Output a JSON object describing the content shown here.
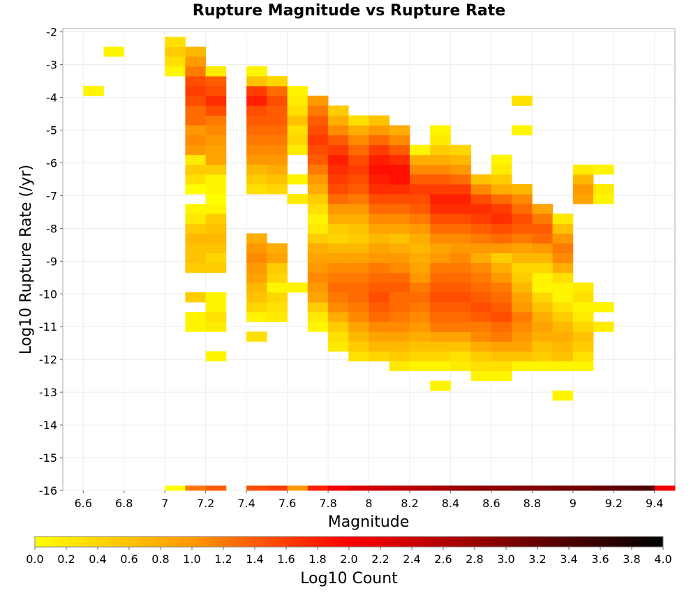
{
  "chart_data": {
    "type": "heatmap",
    "title": "Rupture Magnitude vs Rupture Rate",
    "xlabel": "Magnitude",
    "ylabel": "Log10 Rupture Rate (/yr)",
    "xlim": [
      6.5,
      9.5
    ],
    "ylim": [
      -16,
      -1.9
    ],
    "xticks": [
      "6.6",
      "6.8",
      "7",
      "7.2",
      "7.4",
      "7.6",
      "7.8",
      "8",
      "8.2",
      "8.4",
      "8.6",
      "8.8",
      "9",
      "9.2",
      "9.4"
    ],
    "yticks": [
      "-2",
      "-3",
      "-4",
      "-5",
      "-6",
      "-7",
      "-8",
      "-9",
      "-10",
      "-11",
      "-12",
      "-13",
      "-14",
      "-15",
      "-16"
    ],
    "x_bin_width": 0.1,
    "y_bin_width": 0.3,
    "grid": true,
    "colorbar": {
      "label": "Log10 Count",
      "min": 0.0,
      "max": 4.0,
      "ticks": [
        "0.0",
        "0.2",
        "0.4",
        "0.6",
        "0.8",
        "1.0",
        "1.2",
        "1.4",
        "1.6",
        "1.8",
        "2.0",
        "2.2",
        "2.4",
        "2.6",
        "2.8",
        "3.0",
        "3.2",
        "3.4",
        "3.6",
        "3.8",
        "4.0"
      ],
      "colors": [
        "#ffff00",
        "#ff9900",
        "#ff0000",
        "#800000",
        "#000000"
      ]
    },
    "columns": [
      {
        "x": 6.65,
        "y_start": -3.8,
        "values": [
          0.1
        ]
      },
      {
        "x": 6.75,
        "y_start": -2.6,
        "values": [
          0.1
        ]
      },
      {
        "x": 7.05,
        "y_start": -16.0,
        "values": [
          0.0
        ]
      },
      {
        "x": 7.05,
        "y_start": -3.2,
        "values": [
          0.1,
          0.3,
          0.5,
          0.3
        ]
      },
      {
        "x": 7.15,
        "y_start": -16.0,
        "values": [
          1.2
        ]
      },
      {
        "x": 7.15,
        "y_start": -11.0,
        "values": [
          0.1,
          0.1
        ]
      },
      {
        "x": 7.15,
        "y_start": -10.1,
        "values": [
          0.5
        ]
      },
      {
        "x": 7.15,
        "y_start": -9.2,
        "values": [
          0.5,
          0.6,
          0.6,
          0.7,
          0.5,
          0.2,
          0.1
        ]
      },
      {
        "x": 7.15,
        "y_start": -6.8,
        "values": [
          0.0,
          0.3,
          0.5,
          0.2,
          1.0,
          1.1,
          1.0,
          1.3,
          1.3,
          1.5,
          1.6,
          1.5,
          1.2,
          1.0,
          0.7
        ]
      },
      {
        "x": 7.25,
        "y_start": -16.0,
        "values": [
          1.4
        ]
      },
      {
        "x": 7.25,
        "y_start": -11.9,
        "values": [
          0.1
        ]
      },
      {
        "x": 7.25,
        "y_start": -11.0,
        "values": [
          0.2,
          0.3
        ]
      },
      {
        "x": 7.25,
        "y_start": -10.4,
        "values": [
          0.1,
          0.1
        ]
      },
      {
        "x": 7.25,
        "y_start": -9.2,
        "values": [
          0.5,
          0.4,
          0.6,
          0.7,
          0.6,
          0.5
        ]
      },
      {
        "x": 7.25,
        "y_start": -7.4,
        "values": [
          0.1,
          0.0,
          0.1,
          0.1,
          0.5,
          0.9,
          0.9,
          1.0,
          1.1,
          1.2,
          1.5,
          1.7,
          1.5,
          1.4,
          0.2
        ]
      },
      {
        "x": 7.45,
        "y_start": -16.0,
        "values": [
          1.5
        ]
      },
      {
        "x": 7.45,
        "y_start": -11.3,
        "values": [
          0.3
        ]
      },
      {
        "x": 7.45,
        "y_start": -10.7,
        "values": [
          0.1
        ]
      },
      {
        "x": 7.45,
        "y_start": -10.4,
        "values": [
          0.4,
          0.6,
          0.7,
          0.9,
          1.0,
          1.1,
          1.0,
          0.8
        ]
      },
      {
        "x": 7.45,
        "y_start": -6.8,
        "values": [
          0.3,
          0.5,
          0.7,
          1.0,
          1.1,
          1.2,
          1.3,
          1.4,
          1.5,
          1.8,
          1.6,
          0.6,
          0.1
        ]
      },
      {
        "x": 7.55,
        "y_start": -16.0,
        "values": [
          1.6
        ]
      },
      {
        "x": 7.55,
        "y_start": -10.7,
        "values": [
          0.2,
          0.3,
          0.4
        ]
      },
      {
        "x": 7.55,
        "y_start": -9.8,
        "values": [
          0.1,
          0.4,
          0.5,
          0.9,
          0.8
        ]
      },
      {
        "x": 7.55,
        "y_start": -6.8,
        "values": [
          0.4,
          0.6,
          0.8,
          1.0,
          1.1,
          1.2,
          1.3,
          1.4,
          1.4,
          1.5,
          1.3,
          0.4
        ]
      },
      {
        "x": 7.65,
        "y_start": -16.0,
        "values": [
          1.0
        ]
      },
      {
        "x": 7.65,
        "y_start": -9.8,
        "values": [
          0.1
        ]
      },
      {
        "x": 7.65,
        "y_start": -7.1,
        "values": [
          0.2
        ]
      },
      {
        "x": 7.65,
        "y_start": -6.5,
        "values": [
          0.1
        ]
      },
      {
        "x": 7.65,
        "y_start": -5.6,
        "values": [
          0.2,
          0.4,
          0.3,
          0.6,
          0.3,
          0.2,
          0.1
        ]
      },
      {
        "x": 7.75,
        "y_start": -16.0,
        "values": [
          1.8
        ]
      },
      {
        "x": 7.75,
        "y_start": -11.0,
        "values": [
          0.1,
          0.2,
          0.5,
          0.9,
          1.0,
          1.1,
          1.0,
          0.9,
          0.8,
          0.5,
          0.2,
          0.1,
          0.3,
          0.5,
          0.8,
          1.0,
          1.2,
          1.4,
          1.5,
          1.6,
          1.5,
          1.4,
          1.2,
          1.0
        ]
      },
      {
        "x": 7.85,
        "y_start": -16.0,
        "values": [
          2.1
        ]
      },
      {
        "x": 7.85,
        "y_start": -11.6,
        "values": [
          0.2,
          0.3,
          0.5,
          0.8,
          1.1,
          1.2,
          1.3,
          1.2,
          1.1,
          0.9,
          0.7,
          0.4,
          0.5,
          0.8,
          1.0,
          1.3,
          1.5,
          1.6,
          1.7,
          1.8,
          1.6,
          1.4,
          1.1,
          0.8,
          0.5
        ]
      },
      {
        "x": 7.95,
        "y_start": -16.0,
        "values": [
          2.3
        ]
      },
      {
        "x": 7.95,
        "y_start": -11.9,
        "values": [
          0.3,
          0.5,
          0.7,
          0.9,
          1.1,
          1.2,
          1.3,
          1.3,
          1.2,
          1.1,
          0.9,
          0.7,
          0.5,
          0.6,
          0.8,
          1.0,
          1.2,
          1.4,
          1.5,
          1.6,
          1.5,
          1.3,
          1.1,
          0.8,
          0.3
        ]
      },
      {
        "x": 8.05,
        "y_start": -16.0,
        "values": [
          2.4
        ]
      },
      {
        "x": 8.05,
        "y_start": -11.9,
        "values": [
          0.4,
          0.7,
          0.9,
          1.1,
          1.3,
          1.4,
          1.5,
          1.4,
          1.3,
          1.2,
          1.0,
          0.9,
          0.7,
          0.9,
          1.1,
          1.3,
          1.5,
          1.7,
          1.8,
          1.9,
          1.8,
          1.6,
          1.3,
          1.0,
          0.6
        ]
      },
      {
        "x": 8.15,
        "y_start": -16.0,
        "values": [
          2.5
        ]
      },
      {
        "x": 8.15,
        "y_start": -12.2,
        "values": [
          0.2,
          0.5,
          0.7,
          0.9,
          1.1,
          1.2,
          1.3,
          1.3,
          1.4,
          1.3,
          1.1,
          1.0,
          0.8,
          0.6,
          0.9,
          1.1,
          1.3,
          1.5,
          1.7,
          1.9,
          1.9,
          1.7,
          1.4,
          1.1,
          0.8
        ]
      },
      {
        "x": 8.25,
        "y_start": -16.0,
        "values": [
          2.6
        ]
      },
      {
        "x": 8.25,
        "y_start": -12.2,
        "values": [
          0.1,
          0.4,
          0.6,
          0.8,
          1.0,
          1.1,
          1.2,
          1.3,
          1.2,
          1.0,
          0.9,
          0.8,
          0.7,
          0.8,
          1.0,
          1.2,
          1.4,
          1.5,
          1.6,
          1.4,
          1.1,
          0.8,
          0.1
        ]
      },
      {
        "x": 8.35,
        "y_start": -16.0,
        "values": [
          2.7
        ]
      },
      {
        "x": 8.35,
        "y_start": -12.8,
        "values": [
          0.1
        ]
      },
      {
        "x": 8.35,
        "y_start": -12.2,
        "values": [
          0.1,
          0.4,
          0.6,
          0.9,
          1.2,
          1.3,
          1.4,
          1.5,
          1.4,
          1.3,
          1.2,
          1.0,
          0.9,
          1.1,
          1.3,
          1.5,
          1.7,
          1.8,
          1.6,
          1.4,
          1.1,
          0.8,
          0.5,
          0.2,
          0.1
        ]
      },
      {
        "x": 8.45,
        "y_start": -16.0,
        "values": [
          2.8
        ]
      },
      {
        "x": 8.45,
        "y_start": -12.2,
        "values": [
          0.2,
          0.3,
          0.6,
          0.9,
          1.2,
          1.3,
          1.4,
          1.5,
          1.4,
          1.3,
          1.2,
          1.1,
          1.0,
          1.1,
          1.3,
          1.5,
          1.7,
          1.8,
          1.6,
          1.3,
          1.0,
          0.7,
          0.4
        ]
      },
      {
        "x": 8.55,
        "y_start": -16.0,
        "values": [
          2.9
        ]
      },
      {
        "x": 8.55,
        "y_start": -12.5,
        "values": [
          0.1,
          0.3,
          0.5,
          0.8,
          1.1,
          1.2,
          1.4,
          1.5,
          1.4,
          1.3,
          1.2,
          1.1,
          0.8,
          1.0,
          1.2,
          1.4,
          1.6,
          1.7,
          1.5,
          1.1,
          0.6
        ]
      },
      {
        "x": 8.65,
        "y_start": -16.0,
        "values": [
          2.9
        ]
      },
      {
        "x": 8.65,
        "y_start": -12.5,
        "values": [
          0.1,
          0.3,
          0.6,
          0.9,
          1.2,
          1.3,
          1.5,
          1.4,
          1.3,
          1.2,
          1.0,
          0.8,
          0.5,
          1.0,
          1.3,
          1.5,
          1.7,
          1.6,
          1.3,
          0.8,
          0.5,
          0.2,
          0.1
        ]
      },
      {
        "x": 8.75,
        "y_start": -16.0,
        "values": [
          3.0
        ]
      },
      {
        "x": 8.75,
        "y_start": -12.2,
        "values": [
          0.1,
          0.6,
          0.9,
          1.0,
          1.1,
          1.2,
          1.0,
          0.9,
          0.7,
          0.5,
          0.4,
          0.7,
          0.9,
          1.2,
          1.4,
          1.5,
          1.3,
          1.1,
          0.7
        ]
      },
      {
        "x": 8.75,
        "y_start": -5.0,
        "values": [
          0.1
        ]
      },
      {
        "x": 8.75,
        "y_start": -4.1,
        "values": [
          0.3
        ]
      },
      {
        "x": 8.85,
        "y_start": -16.0,
        "values": [
          3.0
        ]
      },
      {
        "x": 8.85,
        "y_start": -12.2,
        "values": [
          0.1,
          0.5,
          0.6,
          0.8,
          0.9,
          0.8,
          0.6,
          0.4,
          0.1,
          0.1,
          0.4,
          0.7,
          1.0,
          1.3,
          1.4,
          1.2,
          0.9
        ]
      },
      {
        "x": 8.95,
        "y_start": -16.0,
        "values": [
          3.1
        ]
      },
      {
        "x": 8.95,
        "y_start": -13.1,
        "values": [
          0.1
        ]
      },
      {
        "x": 8.95,
        "y_start": -12.2,
        "values": [
          0.1,
          0.6,
          0.7,
          0.8,
          0.7,
          0.5,
          0.3,
          0.1,
          0.1,
          0.3,
          0.8,
          1.1,
          1.2,
          1.0,
          0.6,
          0.2
        ]
      },
      {
        "x": 9.05,
        "y_start": -16.0,
        "values": [
          3.1
        ]
      },
      {
        "x": 9.05,
        "y_start": -12.2,
        "values": [
          0.1,
          0.3,
          0.5,
          0.6,
          0.4,
          0.2,
          0.1,
          0.3,
          0.2
        ]
      },
      {
        "x": 9.05,
        "y_start": -7.1,
        "values": [
          0.9,
          1.0,
          0.7,
          0.2
        ]
      },
      {
        "x": 9.15,
        "y_start": -16.0,
        "values": [
          3.2
        ]
      },
      {
        "x": 9.15,
        "y_start": -11.0,
        "values": [
          0.2
        ]
      },
      {
        "x": 9.15,
        "y_start": -10.4,
        "values": [
          0.1
        ]
      },
      {
        "x": 9.15,
        "y_start": -7.1,
        "values": [
          0.1,
          0.2
        ]
      },
      {
        "x": 9.15,
        "y_start": -6.2,
        "values": [
          0.1
        ]
      },
      {
        "x": 9.25,
        "y_start": -16.0,
        "values": [
          3.3
        ]
      },
      {
        "x": 9.35,
        "y_start": -16.0,
        "values": [
          3.4
        ]
      },
      {
        "x": 9.45,
        "y_start": -16.0,
        "values": [
          2.1
        ]
      }
    ]
  }
}
